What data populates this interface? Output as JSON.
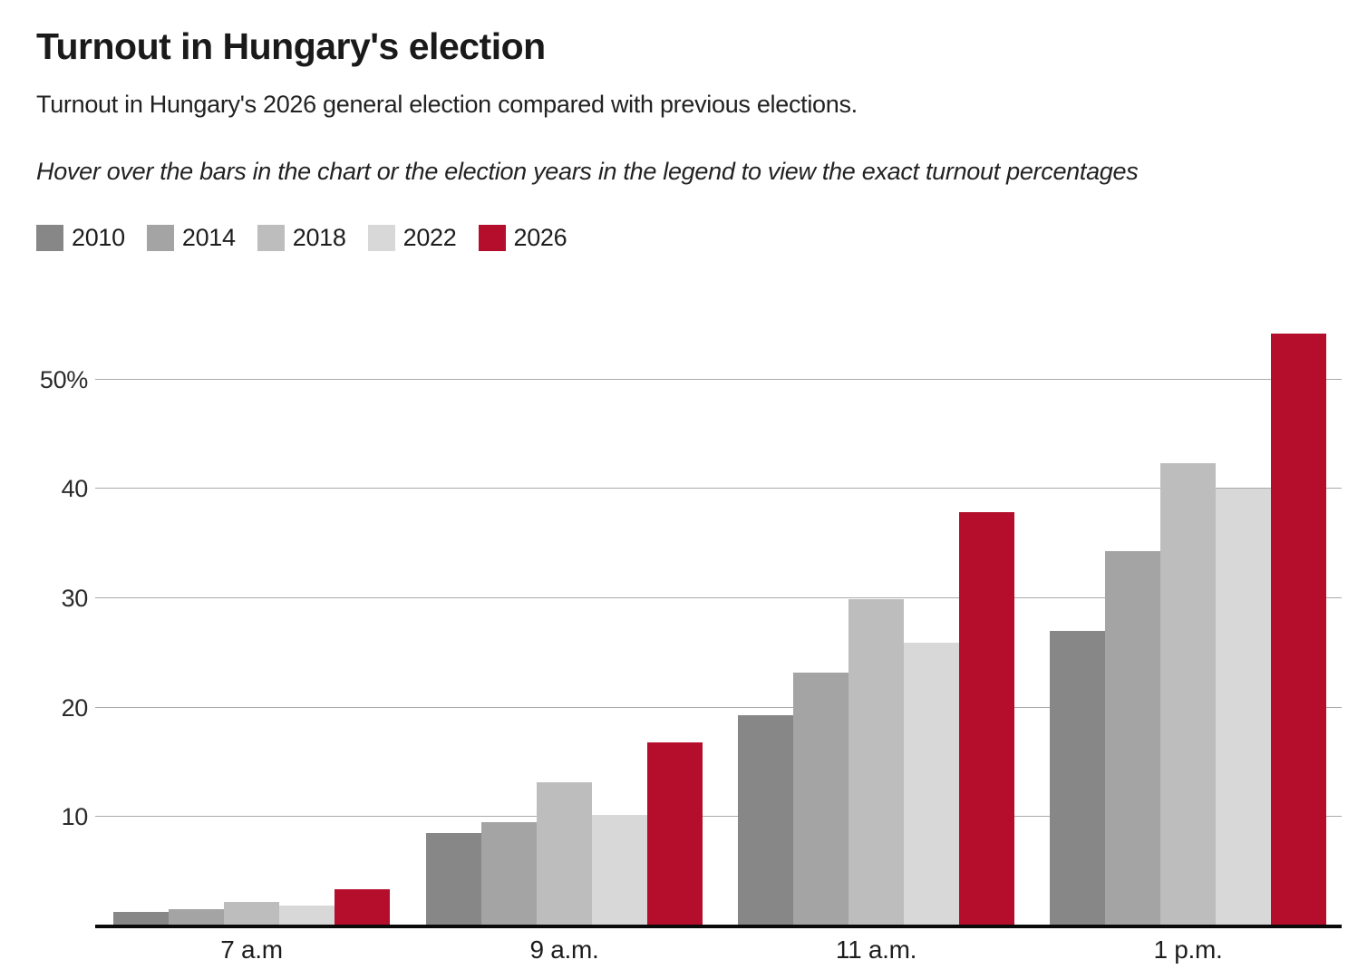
{
  "header": {
    "title": "Turnout in Hungary's election",
    "subtitle": "Turnout in Hungary's 2026 general election compared with previous elections.",
    "hint": "Hover over the bars in the chart or the election years in the legend to view the exact turnout percentages"
  },
  "colors": {
    "accent_red": "#b50e2d",
    "gridline": "#aaaaaa",
    "axis": "#0a0a0a",
    "text": "#1d1d1d"
  },
  "chart_data": {
    "type": "bar",
    "title": "Turnout in Hungary's election",
    "categories": [
      "7 a.m",
      "9 a.m.",
      "11 a.m.",
      "1 p.m."
    ],
    "series": [
      {
        "name": "2010",
        "color": "#878787",
        "values": [
          1.3,
          8.5,
          19.3,
          27.0
        ]
      },
      {
        "name": "2014",
        "color": "#a4a4a4",
        "values": [
          1.6,
          9.5,
          23.2,
          34.3
        ]
      },
      {
        "name": "2018",
        "color": "#bdbdbd",
        "values": [
          2.2,
          13.2,
          29.9,
          42.3
        ]
      },
      {
        "name": "2022",
        "color": "#d8d8d8",
        "values": [
          1.9,
          10.2,
          25.9,
          40.0
        ]
      },
      {
        "name": "2026",
        "color": "#b50e2d",
        "values": [
          3.4,
          16.8,
          37.9,
          54.2
        ]
      }
    ],
    "xlabel": "",
    "ylabel": "",
    "ylim": [
      0,
      56
    ],
    "yticks": [
      {
        "value": 50,
        "label": "50%"
      },
      {
        "value": 40,
        "label": "40"
      },
      {
        "value": 30,
        "label": "30"
      },
      {
        "value": 20,
        "label": "20"
      },
      {
        "value": 10,
        "label": "10"
      }
    ],
    "grid": true,
    "legend_position": "top-left",
    "unit": "%"
  }
}
